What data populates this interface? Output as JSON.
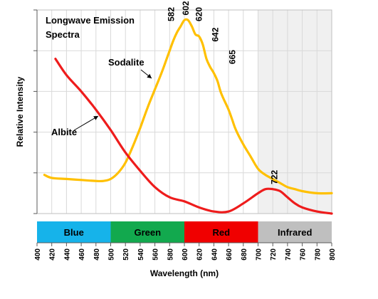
{
  "chart_data": {
    "type": "line",
    "title": [
      "Longwave Emission",
      "Spectra"
    ],
    "xlabel": "Wavelength (nm)",
    "ylabel": "Relative Intensity",
    "xlim": [
      400,
      800
    ],
    "ylim": [
      0,
      100
    ],
    "x_ticks": [
      400,
      420,
      440,
      460,
      480,
      500,
      520,
      540,
      560,
      580,
      600,
      620,
      640,
      660,
      680,
      700,
      720,
      740,
      760,
      780,
      800
    ],
    "y_ticks": [
      0,
      20,
      40,
      60,
      80,
      100
    ],
    "grid": true,
    "shaded_region": {
      "from": 700,
      "to": 800,
      "color": "#f0f0f0"
    },
    "bands": [
      {
        "label": "Blue",
        "from": 400,
        "to": 500,
        "color": "#16b3ea"
      },
      {
        "label": "Green",
        "from": 500,
        "to": 600,
        "color": "#12a94e"
      },
      {
        "label": "Red",
        "from": 600,
        "to": 700,
        "color": "#f00000"
      },
      {
        "label": "Infrared",
        "from": 700,
        "to": 800,
        "color": "#bfbfbf"
      }
    ],
    "series": [
      {
        "name": "Sodalite",
        "color": "#ffc000",
        "x": [
          410,
          420,
          440,
          460,
          480,
          490,
          500,
          510,
          520,
          530,
          540,
          550,
          560,
          570,
          575,
          580,
          585,
          590,
          595,
          600,
          605,
          610,
          615,
          620,
          625,
          630,
          635,
          640,
          645,
          650,
          660,
          665,
          670,
          680,
          690,
          700,
          710,
          720,
          730,
          740,
          750,
          760,
          780,
          800
        ],
        "y": [
          19,
          17.5,
          17,
          16.5,
          16,
          16,
          17,
          20,
          25,
          33,
          42,
          52,
          61,
          70,
          75,
          80,
          85,
          89,
          92,
          95,
          95,
          92,
          88,
          87,
          83,
          76,
          72,
          69,
          65,
          59,
          51,
          46,
          41,
          34,
          28,
          22,
          19,
          17,
          15,
          13,
          12,
          11,
          10,
          10
        ]
      },
      {
        "name": "Albite",
        "color": "#ee1c1c",
        "x": [
          425,
          440,
          460,
          480,
          500,
          520,
          540,
          560,
          580,
          600,
          620,
          640,
          660,
          680,
          700,
          710,
          720,
          730,
          740,
          750,
          760,
          780,
          800
        ],
        "y": [
          76,
          68,
          60,
          51,
          41,
          30,
          21,
          13,
          8,
          6,
          3,
          1,
          1,
          5,
          10,
          12,
          12,
          11,
          8,
          5,
          3,
          1,
          0
        ]
      }
    ],
    "peak_labels": [
      {
        "text": "582",
        "x": 582,
        "y": 93
      },
      {
        "text": "602",
        "x": 602,
        "y": 96
      },
      {
        "text": "620",
        "x": 620,
        "y": 93
      },
      {
        "text": "642",
        "x": 642,
        "y": 83
      },
      {
        "text": "665",
        "x": 665,
        "y": 72
      },
      {
        "text": "722",
        "x": 722,
        "y": 13
      }
    ],
    "series_labels": [
      {
        "text": "Sodalite",
        "series": "Sodalite"
      },
      {
        "text": "Albite",
        "series": "Albite"
      }
    ]
  }
}
